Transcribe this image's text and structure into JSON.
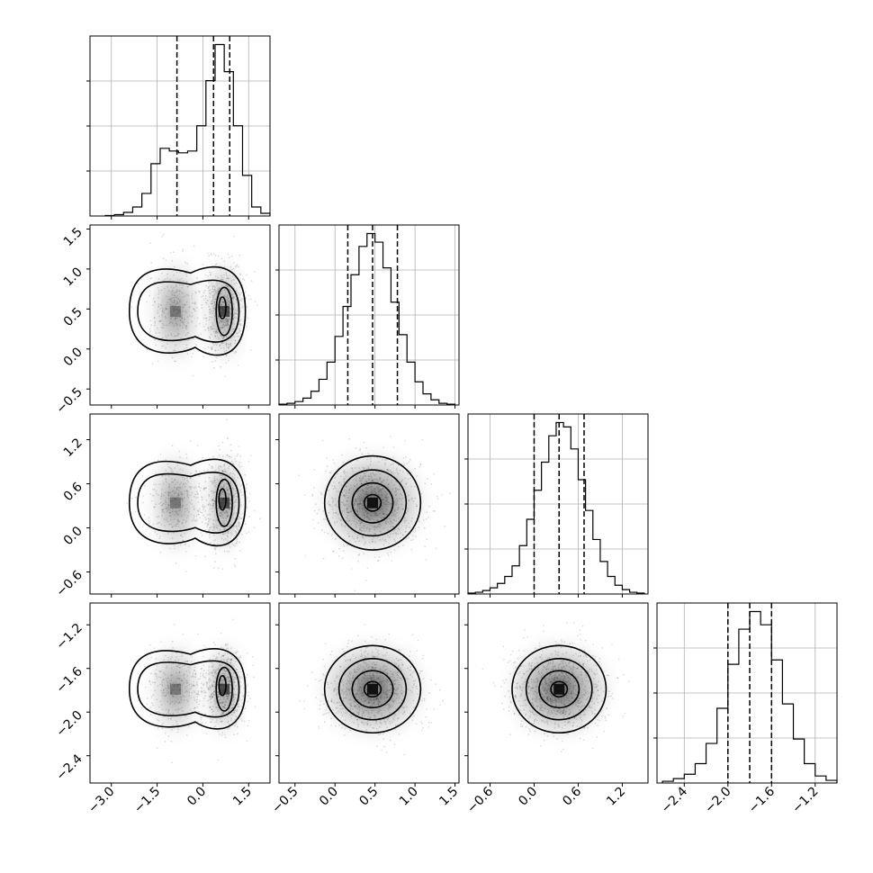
{
  "chart_data": {
    "type": "corner",
    "parameters": [
      {
        "index": 0,
        "range": [
          -3.7,
          2.2
        ],
        "ticks": [
          -3.0,
          -1.5,
          0.0,
          1.5
        ],
        "tick_labels": [
          "−3.0",
          "−1.5",
          "0.0",
          "1.5"
        ]
      },
      {
        "index": 1,
        "range": [
          -0.7,
          1.55
        ],
        "ticks": [
          -0.5,
          0.0,
          0.5,
          1.0,
          1.5
        ],
        "tick_labels": [
          "−0.5",
          "0.0",
          "0.5",
          "1.0",
          "1.5"
        ]
      },
      {
        "index": 2,
        "range": [
          -0.9,
          1.55
        ],
        "ticks": [
          -0.6,
          0.0,
          0.6,
          1.2
        ],
        "tick_labels": [
          "−0.6",
          "0.0",
          "0.6",
          "1.2"
        ]
      },
      {
        "index": 3,
        "range": [
          -2.65,
          -1.0
        ],
        "ticks": [
          -2.4,
          -2.0,
          -1.6,
          -1.2
        ],
        "tick_labels": [
          "−2.4",
          "−2.0",
          "−1.6",
          "−1.2"
        ]
      }
    ],
    "histograms": [
      {
        "param": 0,
        "bin_edges": [
          -3.2,
          -2.9,
          -2.6,
          -2.3,
          -2.0,
          -1.7,
          -1.4,
          -1.1,
          -0.8,
          -0.5,
          -0.2,
          0.1,
          0.4,
          0.7,
          1.0,
          1.3,
          1.6,
          1.9,
          2.2
        ],
        "counts": [
          0.5,
          1.5,
          4,
          10,
          25,
          58,
          75,
          72,
          70,
          72,
          100,
          150,
          190,
          160,
          100,
          45,
          10,
          3
        ],
        "quantiles": [
          -0.85,
          0.35,
          0.88
        ]
      },
      {
        "param": 1,
        "bin_edges": [
          -0.7,
          -0.6,
          -0.5,
          -0.4,
          -0.3,
          -0.2,
          -0.1,
          0.0,
          0.1,
          0.2,
          0.3,
          0.4,
          0.5,
          0.6,
          0.7,
          0.8,
          0.9,
          1.0,
          1.1,
          1.2,
          1.3,
          1.4,
          1.5
        ],
        "counts": [
          1,
          2,
          4,
          8,
          16,
          30,
          50,
          80,
          115,
          152,
          185,
          200,
          190,
          160,
          120,
          82,
          50,
          27,
          13,
          6,
          2,
          1
        ],
        "quantiles": [
          0.16,
          0.47,
          0.78
        ]
      },
      {
        "param": 2,
        "bin_edges": [
          -0.9,
          -0.8,
          -0.7,
          -0.6,
          -0.5,
          -0.4,
          -0.3,
          -0.2,
          -0.1,
          0.0,
          0.1,
          0.2,
          0.3,
          0.4,
          0.5,
          0.6,
          0.7,
          0.8,
          0.9,
          1.0,
          1.1,
          1.2,
          1.3,
          1.4,
          1.5
        ],
        "counts": [
          1,
          2,
          4,
          7,
          12,
          20,
          32,
          55,
          85,
          118,
          150,
          180,
          195,
          190,
          165,
          130,
          95,
          62,
          37,
          20,
          10,
          5,
          2,
          1
        ],
        "quantiles": [
          0.0,
          0.34,
          0.68
        ]
      },
      {
        "param": 3,
        "bin_edges": [
          -2.6,
          -2.5,
          -2.4,
          -2.3,
          -2.2,
          -2.1,
          -2.0,
          -1.9,
          -1.8,
          -1.7,
          -1.6,
          -1.5,
          -1.4,
          -1.3,
          -1.2,
          -1.1,
          -1.0
        ],
        "counts": [
          2,
          5,
          10,
          22,
          45,
          85,
          135,
          175,
          195,
          180,
          140,
          90,
          50,
          22,
          8,
          3
        ],
        "quantiles": [
          -2.0,
          -1.8,
          -1.6
        ]
      }
    ],
    "pairs": [
      {
        "x_param": 0,
        "y_param": 1
      },
      {
        "x_param": 0,
        "y_param": 2
      },
      {
        "x_param": 1,
        "y_param": 2
      },
      {
        "x_param": 0,
        "y_param": 3
      },
      {
        "x_param": 1,
        "y_param": 3
      },
      {
        "x_param": 2,
        "y_param": 3
      }
    ],
    "grid": true,
    "colors": {
      "line": "#000000",
      "grid": "#b0b0b0",
      "density": "#000000"
    }
  }
}
